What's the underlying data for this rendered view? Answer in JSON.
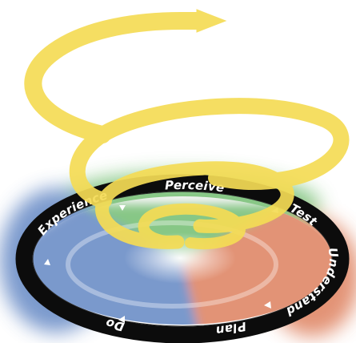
{
  "cycle": {
    "stages": [
      {
        "label": "Test"
      },
      {
        "label": "Understand"
      },
      {
        "label": "Plan"
      },
      {
        "label": "Do"
      },
      {
        "label": "Experience"
      },
      {
        "label": "Perceive"
      }
    ],
    "colors": {
      "spiral": "#f5dc55",
      "ring": "#0c0c0c",
      "quadrant_green": "#7cc27a",
      "quadrant_red": "#e08868",
      "quadrant_blue": "#6d8fc8",
      "ring_text": "#ffffff"
    }
  }
}
